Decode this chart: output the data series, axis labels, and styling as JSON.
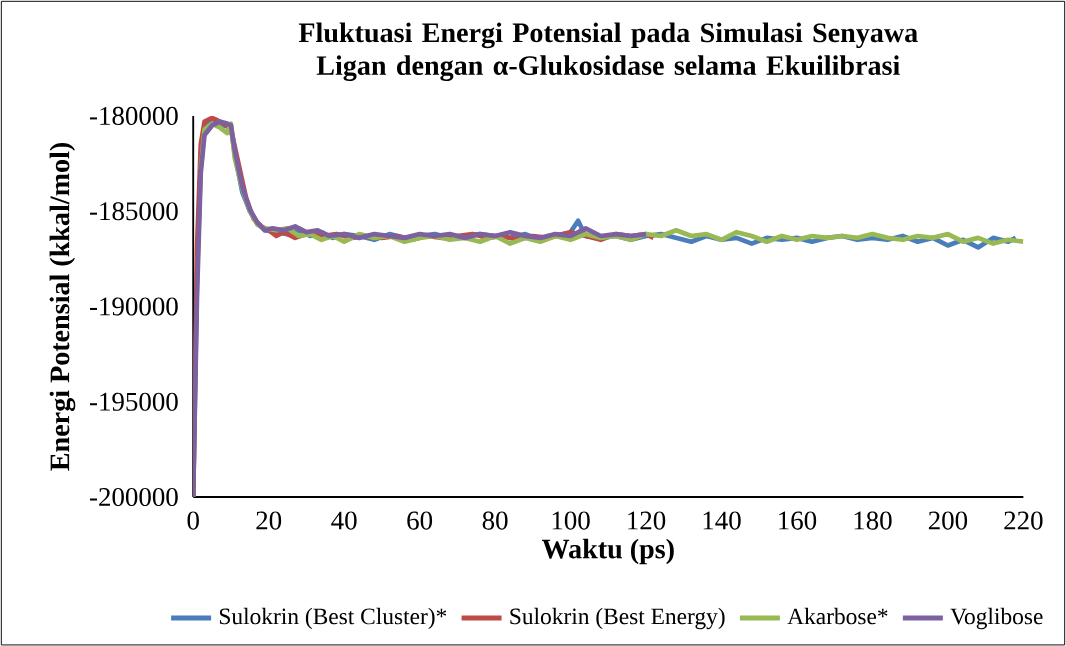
{
  "chart_data": {
    "type": "line",
    "title": "Fluktuasi Energi Potensial pada Simulasi Senyawa Ligan dengan α-Glukosidase selama Ekuilibrasi",
    "xlabel": "Waktu (ps)",
    "ylabel": "Energi Potensial (kkal/mol)",
    "xlim": [
      0,
      220
    ],
    "xticks": [
      0,
      20,
      40,
      60,
      80,
      100,
      120,
      140,
      160,
      180,
      200,
      220
    ],
    "ylim": [
      -200000,
      -180000
    ],
    "yticks": [
      -200000,
      -195000,
      -190000,
      -185000,
      -180000
    ],
    "grid": false,
    "legend": "bottom",
    "marker": "none",
    "line_style": "solid",
    "series": [
      {
        "name": "Sulokrin (Best Cluster)*",
        "color": "#4a7ebb",
        "x": [
          0,
          1,
          2,
          3,
          4,
          6,
          8,
          10,
          11,
          13,
          15,
          17,
          19,
          22,
          25,
          28,
          31,
          34,
          37,
          40,
          44,
          48,
          52,
          56,
          60,
          64,
          68,
          72,
          76,
          80,
          84,
          88,
          92,
          96,
          100,
          102,
          104,
          108,
          112,
          116,
          120,
          124,
          128,
          132,
          136,
          140,
          144,
          148,
          152,
          156,
          160,
          164,
          168,
          172,
          176,
          180,
          184,
          188,
          192,
          196,
          200,
          204,
          208,
          212,
          216,
          218
        ],
        "values": [
          -200000,
          -188500,
          -182500,
          -180600,
          -180300,
          -180200,
          -180500,
          -180600,
          -182000,
          -184000,
          -185000,
          -185600,
          -186000,
          -186100,
          -186200,
          -186000,
          -186300,
          -186100,
          -186400,
          -186200,
          -186300,
          -186500,
          -186200,
          -186400,
          -186300,
          -186200,
          -186400,
          -186300,
          -186200,
          -186300,
          -186400,
          -186200,
          -186500,
          -186300,
          -186100,
          -185500,
          -186300,
          -186400,
          -186300,
          -186500,
          -186300,
          -186200,
          -186400,
          -186600,
          -186300,
          -186500,
          -186400,
          -186700,
          -186400,
          -186500,
          -186400,
          -186600,
          -186400,
          -186300,
          -186500,
          -186400,
          -186500,
          -186300,
          -186600,
          -186400,
          -186800,
          -186500,
          -186900,
          -186400,
          -186600,
          -186400
        ]
      },
      {
        "name": "Sulokrin (Best Energy)",
        "color": "#be4b48",
        "x": [
          0,
          1,
          2,
          3,
          5,
          7,
          9,
          10,
          12,
          14,
          16,
          18,
          20,
          22,
          24,
          27,
          30,
          34,
          38,
          42,
          46,
          50,
          54,
          58,
          62,
          66,
          70,
          74,
          78,
          82,
          86,
          90,
          94,
          98,
          100,
          104,
          108,
          112,
          116,
          120,
          122
        ],
        "values": [
          -200000,
          -187000,
          -181500,
          -180300,
          -180100,
          -180300,
          -180500,
          -180700,
          -182500,
          -184300,
          -185400,
          -185800,
          -186000,
          -186300,
          -186100,
          -186400,
          -186200,
          -186300,
          -186200,
          -186400,
          -186300,
          -186400,
          -186300,
          -186500,
          -186300,
          -186400,
          -186300,
          -186200,
          -186400,
          -186300,
          -186500,
          -186300,
          -186400,
          -186200,
          -186100,
          -186300,
          -186500,
          -186200,
          -186300,
          -186200,
          -186400
        ]
      },
      {
        "name": "Akarbose*",
        "color": "#98b954",
        "x": [
          2,
          3,
          5,
          7,
          9,
          10,
          11,
          13,
          15,
          17,
          19,
          22,
          25,
          28,
          31,
          34,
          37,
          40,
          44,
          48,
          52,
          56,
          60,
          64,
          68,
          72,
          76,
          80,
          84,
          88,
          92,
          96,
          100,
          104,
          108,
          112,
          116,
          120,
          124,
          128,
          132,
          136,
          140,
          144,
          148,
          152,
          156,
          160,
          164,
          168,
          172,
          176,
          180,
          184,
          188,
          192,
          196,
          200,
          204,
          208,
          212,
          216,
          220
        ],
        "values": [
          -182800,
          -180700,
          -180400,
          -180600,
          -180900,
          -180400,
          -182200,
          -183800,
          -185000,
          -185700,
          -185900,
          -186000,
          -185900,
          -186300,
          -186200,
          -186500,
          -186300,
          -186600,
          -186200,
          -186400,
          -186300,
          -186600,
          -186400,
          -186300,
          -186500,
          -186400,
          -186600,
          -186300,
          -186700,
          -186400,
          -186600,
          -186300,
          -186500,
          -186200,
          -186400,
          -186300,
          -186500,
          -186200,
          -186300,
          -186000,
          -186300,
          -186200,
          -186500,
          -186100,
          -186300,
          -186600,
          -186300,
          -186500,
          -186300,
          -186400,
          -186300,
          -186400,
          -186200,
          -186400,
          -186500,
          -186300,
          -186400,
          -186200,
          -186600,
          -186400,
          -186700,
          -186500,
          -186600
        ]
      },
      {
        "name": "Voglibose",
        "color": "#7d60a0",
        "x": [
          0,
          1,
          2,
          3,
          5,
          7,
          9,
          10,
          11,
          13,
          15,
          17,
          19,
          21,
          24,
          27,
          30,
          33,
          36,
          40,
          44,
          48,
          52,
          56,
          60,
          64,
          68,
          72,
          76,
          80,
          84,
          88,
          92,
          96,
          100,
          104,
          108,
          112,
          116,
          120
        ],
        "values": [
          -200000,
          -189500,
          -183000,
          -181000,
          -180500,
          -180300,
          -180400,
          -180500,
          -181800,
          -183700,
          -184900,
          -185600,
          -186000,
          -185900,
          -186000,
          -185800,
          -186100,
          -186000,
          -186300,
          -186200,
          -186400,
          -186200,
          -186300,
          -186400,
          -186200,
          -186300,
          -186200,
          -186400,
          -186200,
          -186300,
          -186100,
          -186300,
          -186400,
          -186200,
          -186300,
          -185900,
          -186300,
          -186200,
          -186300,
          -186200
        ]
      }
    ]
  }
}
